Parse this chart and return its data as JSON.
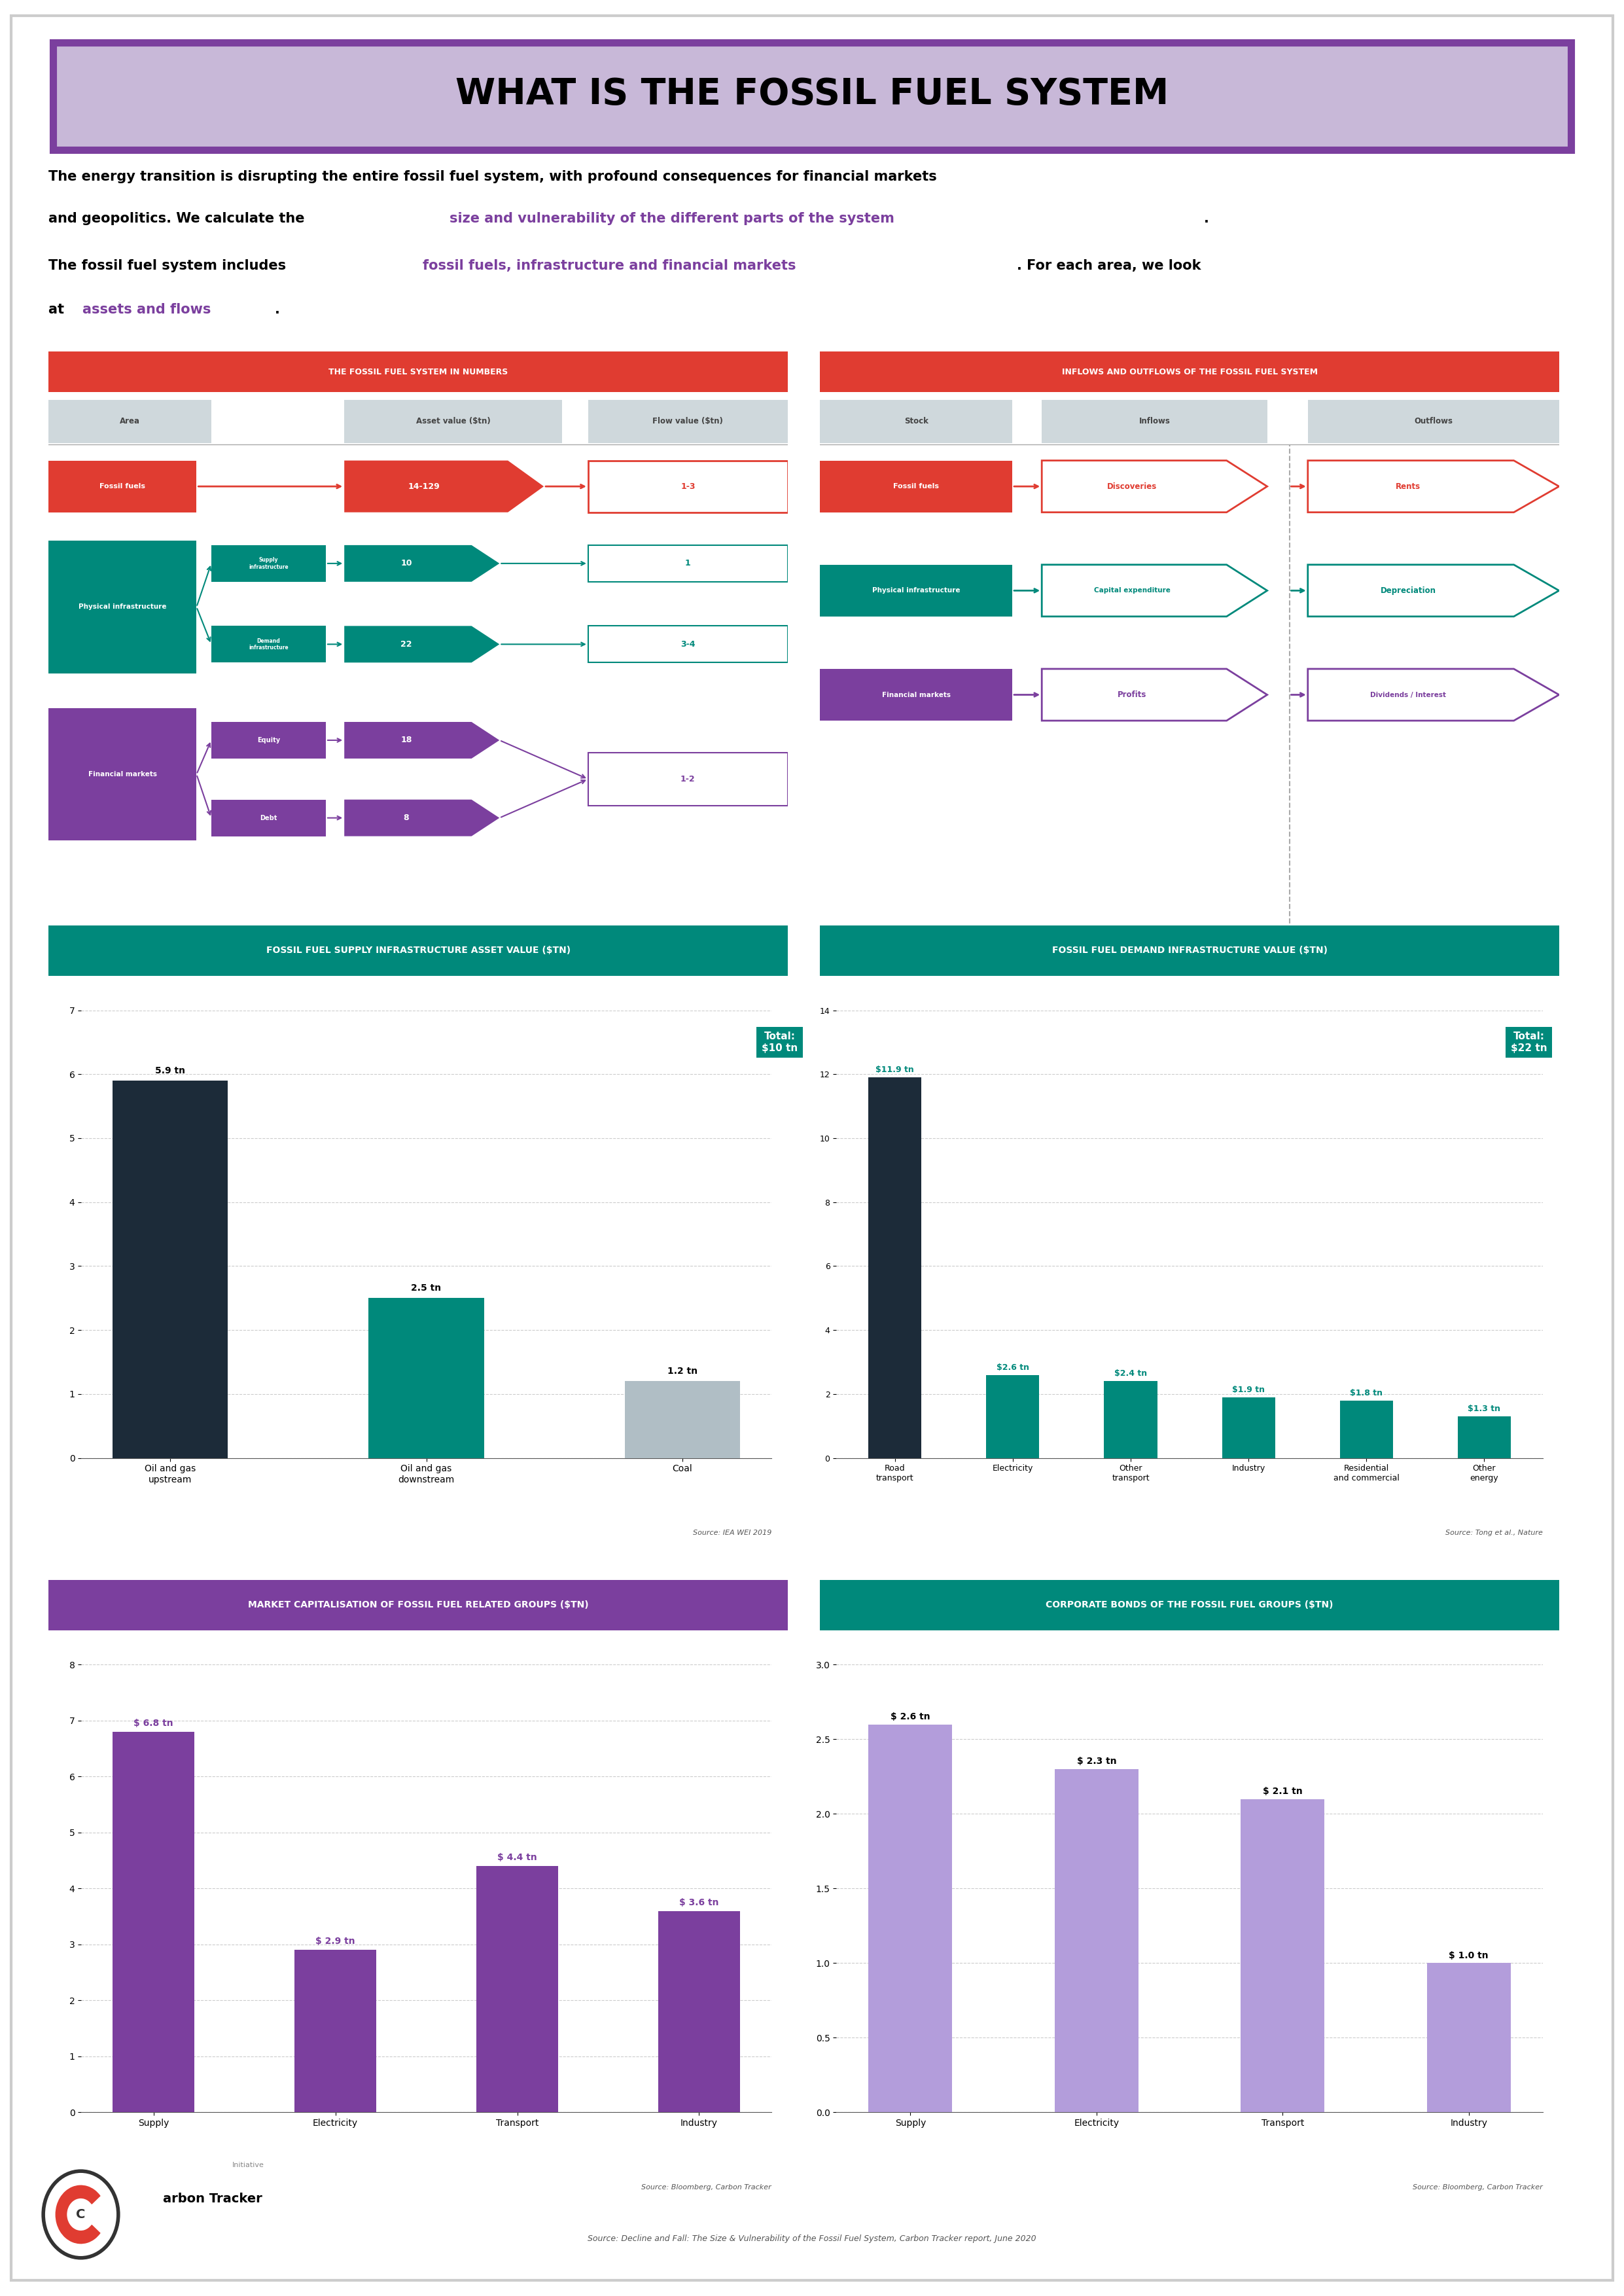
{
  "title": "WHAT IS THE FOSSIL FUEL SYSTEM",
  "title_bg": "#c8b8d8",
  "title_border": "#7b3f9e",
  "highlight_color": "#7b3f9e",
  "section_bg_red": "#e03c31",
  "section_bg_teal": "#00897b",
  "section_bg_purple": "#7b3f9e",
  "left_table_title": "THE FOSSIL FUEL SYSTEM IN NUMBERS",
  "right_table_title": "INFLOWS AND OUTFLOWS OF THE FOSSIL FUEL SYSTEM",
  "supply_chart_title": "FOSSIL FUEL SUPPLY INFRASTRUCTURE ASSET VALUE ($TN)",
  "demand_chart_title": "FOSSIL FUEL DEMAND INFRASTRUCTURE VALUE ($TN)",
  "market_cap_title": "MARKET CAPITALISATION OF FOSSIL FUEL RELATED GROUPS ($TN)",
  "bonds_title": "CORPORATE BONDS OF THE FOSSIL FUEL GROUPS ($TN)",
  "supply_bars": {
    "categories": [
      "Oil and gas\nupstream",
      "Oil and gas\ndownstream",
      "Coal"
    ],
    "values": [
      5.9,
      2.5,
      1.2
    ],
    "labels": [
      "5.9 tn",
      "2.5 tn",
      "1.2 tn"
    ],
    "colors": [
      "#1c2b39",
      "#00897b",
      "#b0bec5"
    ],
    "total_label": "Total:\n$10 tn",
    "total_color": "#00897b",
    "ylim": [
      0,
      7
    ],
    "yticks": [
      0,
      1,
      2,
      3,
      4,
      5,
      6,
      7
    ],
    "source": "Source: IEA WEI 2019"
  },
  "demand_bars": {
    "categories": [
      "Road\ntransport",
      "Electricity",
      "Other\ntransport",
      "Industry",
      "Residential\nand commercial",
      "Other\nenergy"
    ],
    "values": [
      11.9,
      2.6,
      2.4,
      1.9,
      1.8,
      1.3
    ],
    "labels": [
      "$11.9 tn",
      "$2.6 tn",
      "$2.4 tn",
      "$1.9 tn",
      "$1.8 tn",
      "$1.3 tn"
    ],
    "label_color": "#00897b",
    "colors": [
      "#1c2b39",
      "#00897b",
      "#00897b",
      "#00897b",
      "#00897b",
      "#00897b"
    ],
    "total_label": "Total:\n$22 tn",
    "total_color": "#00897b",
    "ylim": [
      0,
      14
    ],
    "yticks": [
      0,
      2,
      4,
      6,
      8,
      10,
      12,
      14
    ],
    "source": "Source: Tong et al., Nature"
  },
  "market_cap_bars": {
    "categories": [
      "Supply",
      "Electricity",
      "Transport",
      "Industry"
    ],
    "values": [
      6.8,
      2.9,
      4.4,
      3.6
    ],
    "labels": [
      "$ 6.8 tn",
      "$ 2.9 tn",
      "$ 4.4 tn",
      "$ 3.6 tn"
    ],
    "colors": [
      "#7b3f9e",
      "#7b3f9e",
      "#7b3f9e",
      "#7b3f9e"
    ],
    "ylim": [
      0,
      8
    ],
    "yticks": [
      0,
      1,
      2,
      3,
      4,
      5,
      6,
      7,
      8
    ],
    "source": "Source: Bloomberg, Carbon Tracker"
  },
  "bonds_bars": {
    "categories": [
      "Supply",
      "Electricity",
      "Transport",
      "Industry"
    ],
    "values": [
      2.6,
      2.3,
      2.1,
      1.0
    ],
    "labels": [
      "$ 2.6 tn",
      "$ 2.3 tn",
      "$ 2.1 tn",
      "$ 1.0 tn"
    ],
    "colors": [
      "#b39ddb",
      "#b39ddb",
      "#b39ddb",
      "#b39ddb"
    ],
    "ylim": [
      0,
      3.0
    ],
    "yticks": [
      0,
      0.5,
      1.0,
      1.5,
      2.0,
      2.5,
      3.0
    ],
    "source": "Source: Bloomberg, Carbon Tracker"
  },
  "footer": "Source: Decline and Fall: The Size & Vulnerability of the Fossil Fuel System, Carbon Tracker report, June 2020"
}
